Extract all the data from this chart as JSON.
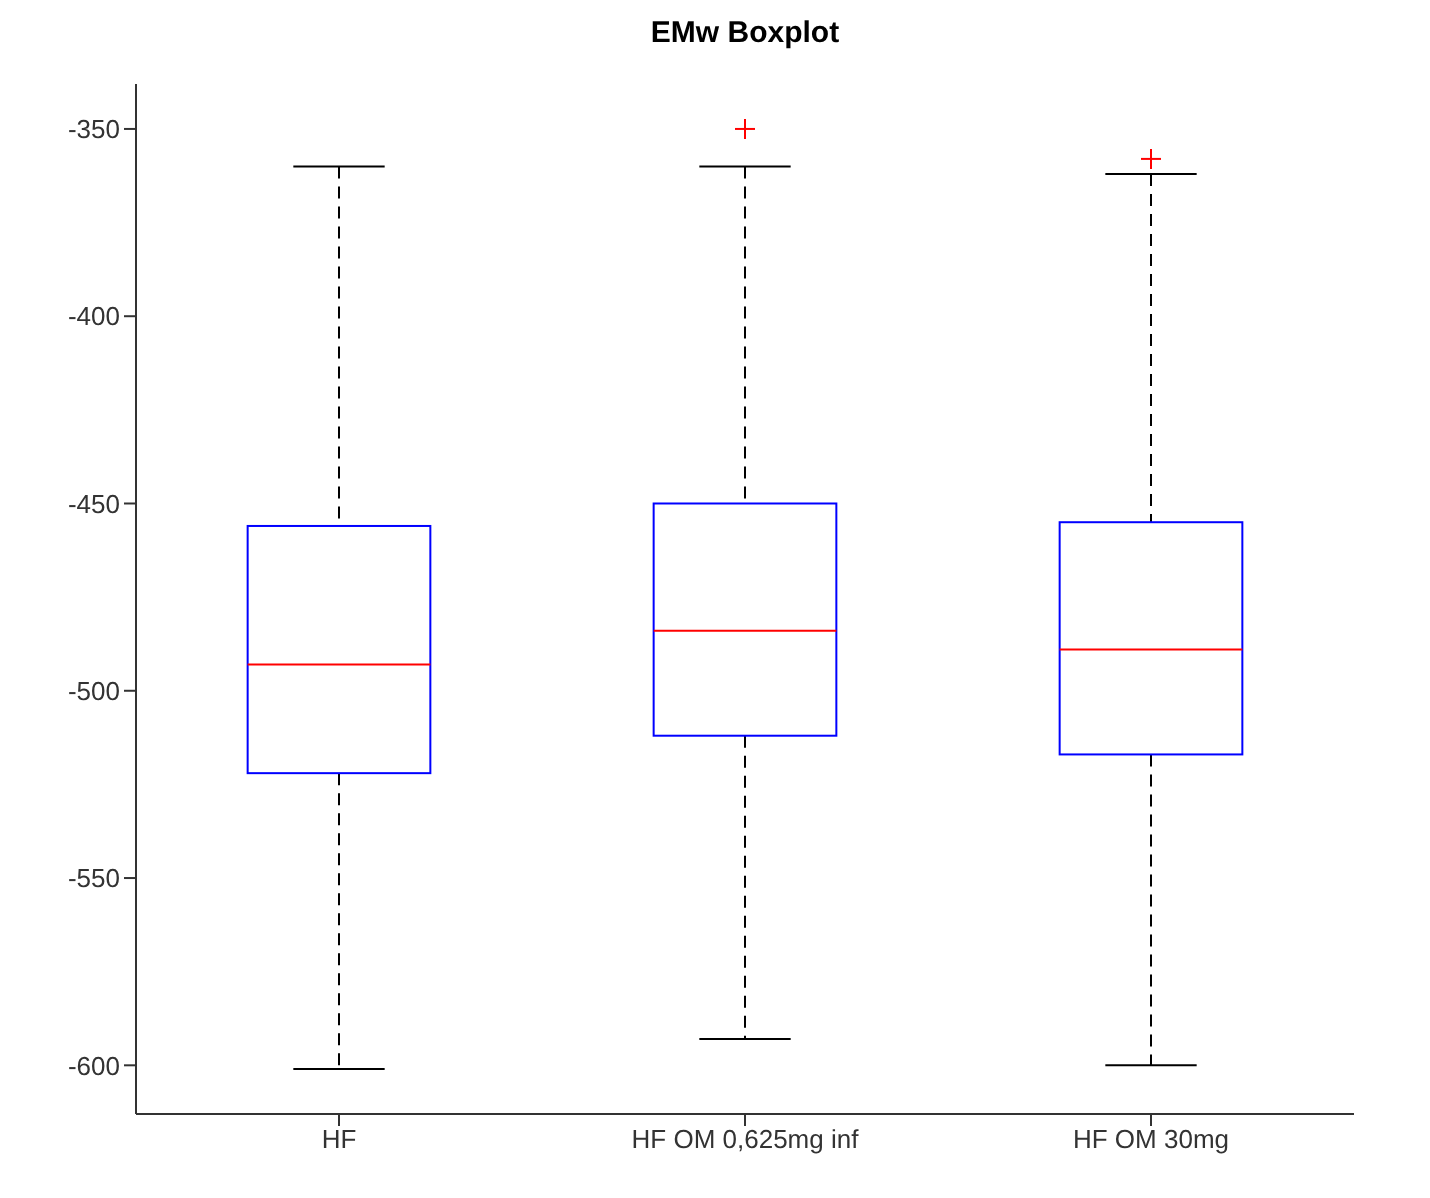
{
  "chart_data": {
    "type": "box",
    "title": "EMw Boxplot",
    "categories": [
      "HF",
      "HF OM 0,625mg inf",
      "HF OM 30mg"
    ],
    "boxes": [
      {
        "low": -601,
        "q1": -522,
        "median": -493,
        "q3": -456,
        "high": -360
      },
      {
        "low": -593,
        "q1": -512,
        "median": -484,
        "q3": -450,
        "high": -360,
        "outliers": [
          -350
        ]
      },
      {
        "low": -600,
        "q1": -517,
        "median": -489,
        "q3": -455,
        "high": -362,
        "outliers": [
          -358
        ]
      }
    ],
    "ylim": [
      -613,
      -338
    ],
    "yticks": [
      -600,
      -550,
      -500,
      -450,
      -400,
      -350
    ],
    "grid": false
  }
}
